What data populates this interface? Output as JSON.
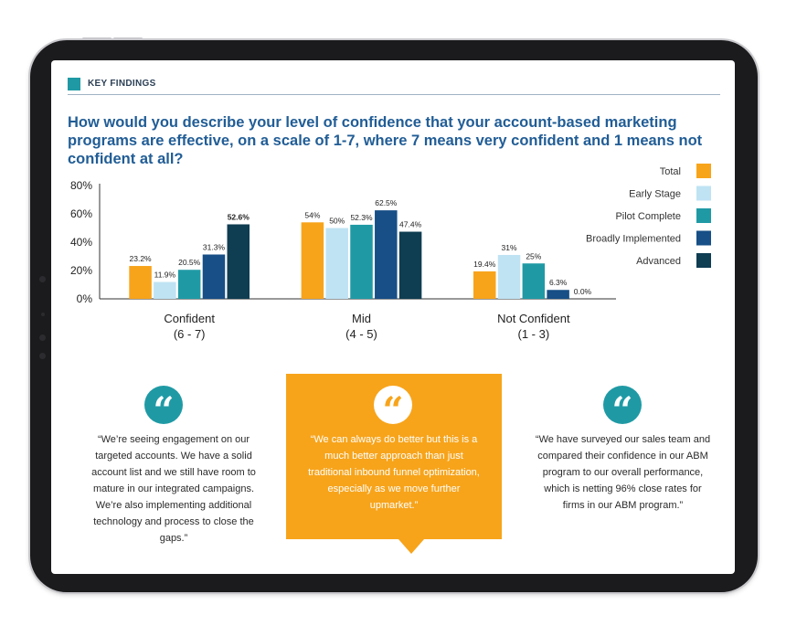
{
  "header": {
    "label": "KEY FINDINGS"
  },
  "question": "How would you describe your level of confidence that your account-based marketing programs are effective, on a scale of 1-7, where 7 means very confident and 1 means not confident at all?",
  "colors": {
    "accent": "#1f9aa5",
    "title": "#215d96",
    "callout": "#f7a41b",
    "series": [
      "#f7a41b",
      "#bfe3f3",
      "#1f9aa5",
      "#174f86",
      "#0f3d52"
    ]
  },
  "chart_data": {
    "type": "bar",
    "categories": [
      "Confident\n(6 - 7)",
      "Mid\n(4 - 5)",
      "Not Confident\n(1 - 3)"
    ],
    "series": [
      {
        "name": "Total",
        "values": [
          23.2,
          54,
          19.4
        ],
        "labels": [
          "23.2%",
          "54%",
          "19.4%"
        ]
      },
      {
        "name": "Early Stage",
        "values": [
          11.9,
          50,
          31
        ],
        "labels": [
          "11.9%",
          "50%",
          "31%"
        ]
      },
      {
        "name": "Pilot Complete",
        "values": [
          20.5,
          52.3,
          25
        ],
        "labels": [
          "20.5%",
          "52.3%",
          "25%"
        ]
      },
      {
        "name": "Broadly Implemented",
        "values": [
          31.3,
          62.5,
          6.3
        ],
        "labels": [
          "31.3%",
          "62.5%",
          "6.3%"
        ]
      },
      {
        "name": "Advanced",
        "values": [
          52.6,
          47.4,
          0.0
        ],
        "labels": [
          "52.6%",
          "47.4%",
          "0.0%"
        ]
      }
    ],
    "bold_labels": [
      "52.6%"
    ],
    "yticks": [
      "0%",
      "20%",
      "40%",
      "60%",
      "80%"
    ],
    "ylim": [
      0,
      80
    ],
    "grid": false,
    "legend_position": "right"
  },
  "quotes": [
    {
      "icon": "quote-icon",
      "text": "“We’re seeing engagement on our targeted accounts. We have a solid account list and we still have room to mature in our integrated campaigns. We’re also implementing additional technology and process to close the gaps.”"
    },
    {
      "icon": "quote-icon",
      "text": "“We can always do better but this is a much better approach than just traditional inbound funnel optimization, especially as we move further upmarket.”"
    },
    {
      "icon": "quote-icon",
      "text": "“We have surveyed our sales team and compared their confidence in our ABM program to our overall performance, which is netting 96% close rates for firms in our ABM program.”"
    }
  ]
}
